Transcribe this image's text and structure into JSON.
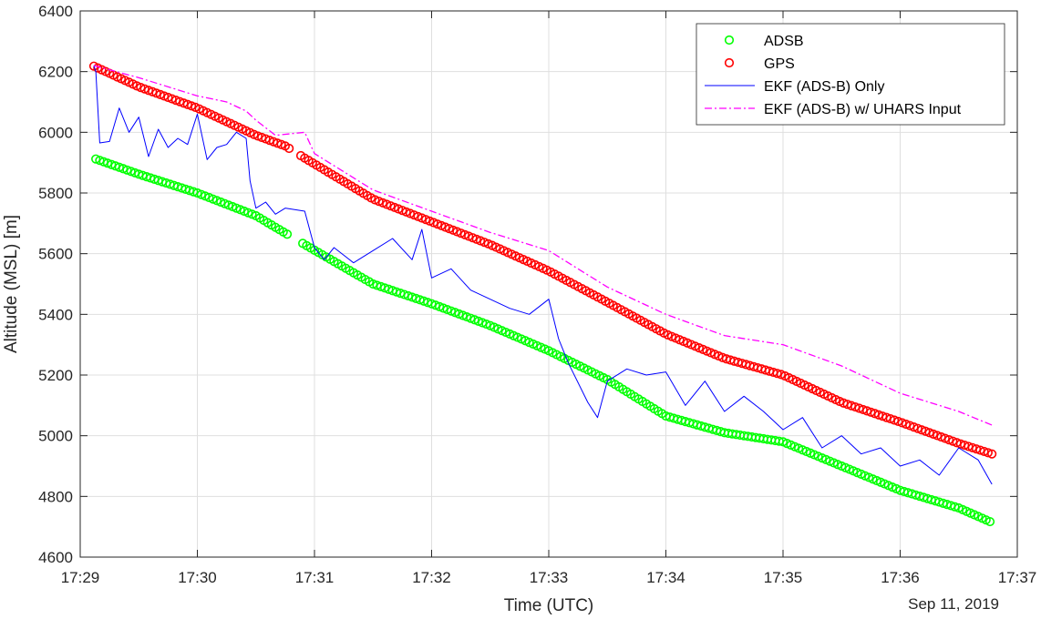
{
  "chart_data": {
    "type": "line",
    "xlabel": "Time (UTC)",
    "ylabel": "Altitude (MSL) [m]",
    "date_label": "Sep 11, 2019",
    "xlim": [
      "17:29",
      "17:37"
    ],
    "ylim": [
      4600,
      6400
    ],
    "x_ticks": [
      "17:29",
      "17:30",
      "17:31",
      "17:32",
      "17:33",
      "17:34",
      "17:35",
      "17:36",
      "17:37"
    ],
    "y_ticks": [
      4600,
      4800,
      5000,
      5200,
      5400,
      5600,
      5800,
      6000,
      6200,
      6400
    ],
    "grid": true,
    "legend_position": "top-right",
    "series": [
      {
        "name": "ADSB",
        "style": "circles",
        "color": "#00ff00",
        "x": [
          "17:29:08",
          "17:29:30",
          "17:30:00",
          "17:30:30",
          "17:30:45",
          "17:30:55",
          "17:31:30",
          "17:32:00",
          "17:32:30",
          "17:33:00",
          "17:33:30",
          "17:34:00",
          "17:34:30",
          "17:35:00",
          "17:35:30",
          "17:36:00",
          "17:36:30",
          "17:36:47"
        ],
        "values": [
          5912,
          5862,
          5800,
          5725,
          5668,
          5630,
          5500,
          5435,
          5363,
          5280,
          5185,
          5065,
          5010,
          4980,
          4900,
          4820,
          4762,
          4714
        ]
      },
      {
        "name": "GPS",
        "style": "circles",
        "color": "#ff0000",
        "x": [
          "17:29:07",
          "17:29:30",
          "17:30:00",
          "17:30:30",
          "17:30:45",
          "17:30:55",
          "17:31:30",
          "17:32:00",
          "17:32:30",
          "17:33:00",
          "17:33:30",
          "17:34:00",
          "17:34:30",
          "17:35:00",
          "17:35:30",
          "17:36:00",
          "17:36:30",
          "17:36:47"
        ],
        "values": [
          6218,
          6150,
          6080,
          5990,
          5955,
          5915,
          5780,
          5705,
          5630,
          5543,
          5440,
          5335,
          5255,
          5200,
          5110,
          5045,
          4975,
          4940
        ]
      },
      {
        "name": "EKF (ADS-B) Only",
        "style": "line",
        "color": "#0000ff",
        "x": [
          "17:29:07",
          "17:29:08",
          "17:29:10",
          "17:29:15",
          "17:29:20",
          "17:29:25",
          "17:29:30",
          "17:29:35",
          "17:29:40",
          "17:29:45",
          "17:29:50",
          "17:29:55",
          "17:30:00",
          "17:30:05",
          "17:30:10",
          "17:30:15",
          "17:30:20",
          "17:30:25",
          "17:30:27",
          "17:30:30",
          "17:30:35",
          "17:30:40",
          "17:30:45",
          "17:30:55",
          "17:31:00",
          "17:31:05",
          "17:31:10",
          "17:31:20",
          "17:31:30",
          "17:31:40",
          "17:31:50",
          "17:31:55",
          "17:32:00",
          "17:32:10",
          "17:32:20",
          "17:32:30",
          "17:32:40",
          "17:32:50",
          "17:33:00",
          "17:33:05",
          "17:33:10",
          "17:33:20",
          "17:33:25",
          "17:33:30",
          "17:33:40",
          "17:33:50",
          "17:34:00",
          "17:34:10",
          "17:34:20",
          "17:34:30",
          "17:34:40",
          "17:34:50",
          "17:35:00",
          "17:35:10",
          "17:35:20",
          "17:35:30",
          "17:35:40",
          "17:35:50",
          "17:36:00",
          "17:36:10",
          "17:36:20",
          "17:36:30",
          "17:36:40",
          "17:36:47"
        ],
        "values": [
          6220,
          6200,
          5965,
          5970,
          6080,
          6000,
          6050,
          5920,
          6010,
          5950,
          5980,
          5960,
          6060,
          5910,
          5950,
          5960,
          6000,
          5980,
          5840,
          5750,
          5770,
          5730,
          5750,
          5740,
          5620,
          5580,
          5620,
          5570,
          5610,
          5650,
          5580,
          5680,
          5520,
          5550,
          5480,
          5450,
          5420,
          5400,
          5450,
          5320,
          5240,
          5110,
          5060,
          5180,
          5220,
          5200,
          5210,
          5100,
          5180,
          5080,
          5130,
          5080,
          5020,
          5060,
          4960,
          5000,
          4940,
          4960,
          4900,
          4920,
          4870,
          4960,
          4920,
          4840
        ]
      },
      {
        "name": "EKF (ADS-B) w/ UHARS Input",
        "style": "dashdot",
        "color": "#ff00ff",
        "x": [
          "17:29:07",
          "17:29:30",
          "17:30:00",
          "17:30:15",
          "17:30:25",
          "17:30:30",
          "17:30:40",
          "17:30:55",
          "17:31:00",
          "17:31:30",
          "17:32:00",
          "17:32:30",
          "17:33:00",
          "17:33:30",
          "17:34:00",
          "17:34:30",
          "17:35:00",
          "17:35:30",
          "17:36:00",
          "17:36:30",
          "17:36:47"
        ],
        "values": [
          6220,
          6180,
          6120,
          6100,
          6070,
          6040,
          5990,
          6000,
          5930,
          5810,
          5740,
          5670,
          5610,
          5490,
          5400,
          5330,
          5300,
          5230,
          5140,
          5080,
          5035
        ]
      }
    ]
  }
}
